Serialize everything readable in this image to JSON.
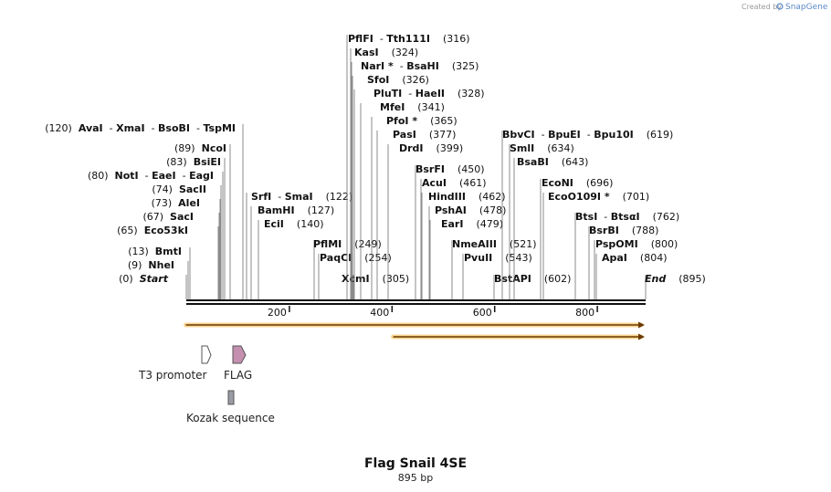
{
  "credit": {
    "prefix": "Created by",
    "brand": "SnapGene"
  },
  "map": {
    "title": "Flag Snail 4SE",
    "length_label": "895 bp",
    "length_bp": 895
  },
  "ruler": {
    "ticks": [
      200,
      400,
      600,
      800
    ]
  },
  "sites": [
    {
      "id": "s0",
      "names": [
        "Start"
      ],
      "pos_label": "(0)",
      "pos": 0,
      "italic": true
    },
    {
      "id": "s1",
      "names": [
        "NheI"
      ],
      "pos_label": "(9)",
      "pos": 9
    },
    {
      "id": "s2",
      "names": [
        "BmtI"
      ],
      "pos_label": "(13)",
      "pos": 13
    },
    {
      "id": "s3",
      "names": [
        "Eco53kI"
      ],
      "pos_label": "(65)",
      "pos": 65
    },
    {
      "id": "s4",
      "names": [
        "SacI"
      ],
      "pos_label": "(67)",
      "pos": 67
    },
    {
      "id": "s5",
      "names": [
        "AleI"
      ],
      "pos_label": "(73)",
      "pos": 73
    },
    {
      "id": "s6",
      "names": [
        "SacII"
      ],
      "pos_label": "(74)",
      "pos": 74
    },
    {
      "id": "s7",
      "names": [
        "NotI",
        "EaeI",
        "EagI"
      ],
      "pos_label": "(80)",
      "pos": 80
    },
    {
      "id": "s8",
      "names": [
        "BsiEI"
      ],
      "pos_label": "(83)",
      "pos": 83
    },
    {
      "id": "s9",
      "names": [
        "NcoI"
      ],
      "pos_label": "(89)",
      "pos": 89
    },
    {
      "id": "s10",
      "names": [
        "AvaI",
        "XmaI",
        "BsoBI",
        "TspMI"
      ],
      "pos_label": "(120)",
      "pos": 120
    },
    {
      "id": "s11",
      "names": [
        "SrfI",
        "SmaI"
      ],
      "pos_label": "(122)",
      "pos": 122
    },
    {
      "id": "s12",
      "names": [
        "BamHI"
      ],
      "pos_label": "(127)",
      "pos": 127
    },
    {
      "id": "s13",
      "names": [
        "EciI"
      ],
      "pos_label": "(140)",
      "pos": 140
    },
    {
      "id": "s14",
      "names": [
        "PflMI"
      ],
      "pos_label": "(249)",
      "pos": 249
    },
    {
      "id": "s15",
      "names": [
        "PaqCI"
      ],
      "pos_label": "(254)",
      "pos": 254
    },
    {
      "id": "s16",
      "names": [
        "XcmI"
      ],
      "pos_label": "(305)",
      "pos": 305
    },
    {
      "id": "s17",
      "names": [
        "PflFI",
        "Tth111I"
      ],
      "pos_label": "(316)",
      "pos": 316
    },
    {
      "id": "s18",
      "names": [
        "KasI"
      ],
      "pos_label": "(324)",
      "pos": 324
    },
    {
      "id": "s19",
      "names": [
        "NarI *",
        "BsaHI"
      ],
      "pos_label": "(325)",
      "pos": 325
    },
    {
      "id": "s20",
      "names": [
        "SfoI"
      ],
      "pos_label": "(326)",
      "pos": 326
    },
    {
      "id": "s21",
      "names": [
        "PluTI",
        "HaeII"
      ],
      "pos_label": "(328)",
      "pos": 328
    },
    {
      "id": "s22",
      "names": [
        "MfeI"
      ],
      "pos_label": "(341)",
      "pos": 341
    },
    {
      "id": "s23",
      "names": [
        "PfoI *"
      ],
      "pos_label": "(365)",
      "pos": 365
    },
    {
      "id": "s24",
      "names": [
        "PasI"
      ],
      "pos_label": "(377)",
      "pos": 377
    },
    {
      "id": "s25",
      "names": [
        "DrdI"
      ],
      "pos_label": "(399)",
      "pos": 399
    },
    {
      "id": "s26",
      "names": [
        "BsrFI"
      ],
      "pos_label": "(450)",
      "pos": 450
    },
    {
      "id": "s27",
      "names": [
        "AcuI"
      ],
      "pos_label": "(461)",
      "pos": 461
    },
    {
      "id": "s28",
      "names": [
        "HindIII"
      ],
      "pos_label": "(462)",
      "pos": 462
    },
    {
      "id": "s29",
      "names": [
        "PshAI"
      ],
      "pos_label": "(478)",
      "pos": 478
    },
    {
      "id": "s30",
      "names": [
        "EarI"
      ],
      "pos_label": "(479)",
      "pos": 479
    },
    {
      "id": "s31",
      "names": [
        "NmeAIII"
      ],
      "pos_label": "(521)",
      "pos": 521
    },
    {
      "id": "s32",
      "names": [
        "PvuII"
      ],
      "pos_label": "(543)",
      "pos": 543
    },
    {
      "id": "s33",
      "names": [
        "BstAPI"
      ],
      "pos_label": "(602)",
      "pos": 602
    },
    {
      "id": "s34",
      "names": [
        "BbvCI",
        "BpuEI",
        "Bpu10I"
      ],
      "pos_label": "(619)",
      "pos": 619
    },
    {
      "id": "s35",
      "names": [
        "SmlI"
      ],
      "pos_label": "(634)",
      "pos": 634
    },
    {
      "id": "s36",
      "names": [
        "BsaBI"
      ],
      "pos_label": "(643)",
      "pos": 643
    },
    {
      "id": "s37",
      "names": [
        "EcoNI"
      ],
      "pos_label": "(696)",
      "pos": 696
    },
    {
      "id": "s38",
      "names": [
        "EcoO109I *"
      ],
      "pos_label": "(701)",
      "pos": 701
    },
    {
      "id": "s39",
      "names": [
        "BtsI",
        "BtsαI"
      ],
      "pos_label": "(762)",
      "pos": 762
    },
    {
      "id": "s40",
      "names": [
        "BsrBI"
      ],
      "pos_label": "(788)",
      "pos": 788
    },
    {
      "id": "s41",
      "names": [
        "PspOMI"
      ],
      "pos_label": "(800)",
      "pos": 800
    },
    {
      "id": "s42",
      "names": [
        "ApaI"
      ],
      "pos_label": "(804)",
      "pos": 804
    },
    {
      "id": "s43",
      "names": [
        "End"
      ],
      "pos_label": "(895)",
      "pos": 895,
      "italic": true
    }
  ],
  "orfs": [
    {
      "start": 1,
      "end": 895,
      "color": "#f4b43c"
    },
    {
      "start": 405,
      "end": 895,
      "color": "#f4b43c"
    }
  ],
  "features": [
    {
      "id": "t3",
      "label": "T3 promoter",
      "type": "promoter",
      "color": "#ffffff"
    },
    {
      "id": "flag",
      "label": "FLAG",
      "type": "tag",
      "color": "#c58fb0"
    },
    {
      "id": "kozak",
      "label": "Kozak sequence",
      "type": "misc",
      "color": "#9a9ca6"
    }
  ]
}
